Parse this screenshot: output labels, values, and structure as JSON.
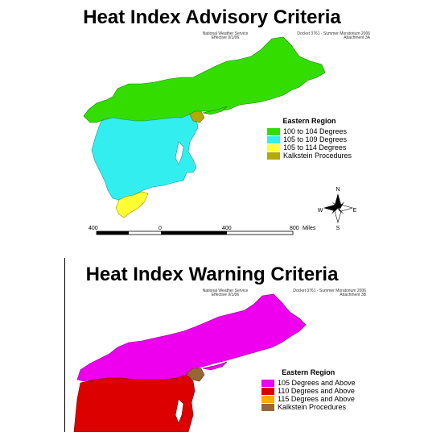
{
  "advisory": {
    "title": "Heat Index Advisory Criteria",
    "agency": [
      "National Weather Service",
      "Effective 9/1/06"
    ],
    "docket": [
      "Docket 3761 - Summer Moratorium 2006",
      "Attachment 3A"
    ],
    "legend_title": "Eastern Region",
    "legend": [
      {
        "label": "100 to 104 Degrees",
        "color": "#33dd00"
      },
      {
        "label": "105 to 109 Degrees",
        "color": "#33eeee"
      },
      {
        "label": "105 to 114 Degrees",
        "color": "#ffff33"
      },
      {
        "label": "Kalkstein Procedures",
        "color": "#b3a900"
      }
    ],
    "scale_labels": [
      "400",
      "0",
      "400",
      "800",
      "Miles"
    ],
    "compass": {
      "n": "N",
      "s": "S",
      "e": "E",
      "w": "W"
    }
  },
  "warning": {
    "title": "Heat Index Warning Criteria",
    "agency": [
      "National Weather Service",
      "Effective 9/1/06"
    ],
    "docket": [
      "Docket 3761 - Summer Moratorium 2006",
      "Attachment 3B"
    ],
    "legend_title": "Eastern Region",
    "legend": [
      {
        "label": "105 Degrees and Above",
        "color": "#ee00ee"
      },
      {
        "label": "110 Degrees and Above",
        "color": "#dd0000"
      },
      {
        "label": "115 Degrees and Above",
        "color": "#ffaa00"
      },
      {
        "label": "Kalkstein Procedures",
        "color": "#996633"
      }
    ]
  }
}
